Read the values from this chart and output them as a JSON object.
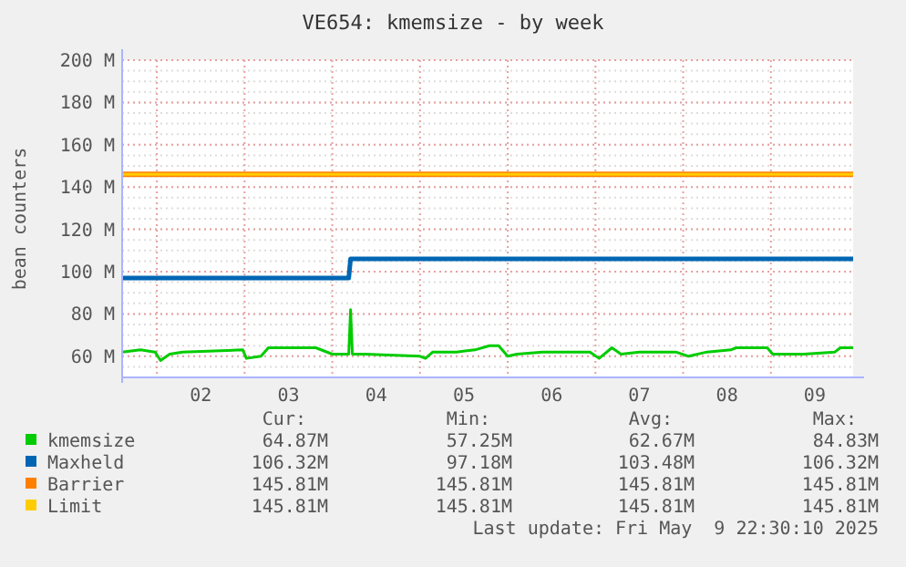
{
  "chart_data": {
    "type": "line",
    "title": "VE654: kmemsize - by week",
    "ylabel": "bean counters",
    "xlim": [
      "2025-05-01T14:30",
      "2025-05-09T22:30"
    ],
    "xticks": [
      {
        "value": "2025-05-02T00:00",
        "label": null
      },
      {
        "value": "2025-05-02T12:00",
        "label": "02"
      },
      {
        "value": "2025-05-03T00:00",
        "label": null
      },
      {
        "value": "2025-05-03T12:00",
        "label": "03"
      },
      {
        "value": "2025-05-04T00:00",
        "label": null
      },
      {
        "value": "2025-05-04T12:00",
        "label": "04"
      },
      {
        "value": "2025-05-05T00:00",
        "label": null
      },
      {
        "value": "2025-05-05T12:00",
        "label": "05"
      },
      {
        "value": "2025-05-06T00:00",
        "label": null
      },
      {
        "value": "2025-05-06T12:00",
        "label": "06"
      },
      {
        "value": "2025-05-07T00:00",
        "label": null
      },
      {
        "value": "2025-05-07T12:00",
        "label": "07"
      },
      {
        "value": "2025-05-08T00:00",
        "label": null
      },
      {
        "value": "2025-05-08T12:00",
        "label": "08"
      },
      {
        "value": "2025-05-09T00:00",
        "label": null
      },
      {
        "value": "2025-05-09T12:00",
        "label": "09"
      }
    ],
    "ylim": [
      50,
      200
    ],
    "yticks": [
      {
        "value": 60,
        "label": "60 M"
      },
      {
        "value": 80,
        "label": "80 M"
      },
      {
        "value": 100,
        "label": "100 M"
      },
      {
        "value": 120,
        "label": "120 M"
      },
      {
        "value": 140,
        "label": "140 M"
      },
      {
        "value": 160,
        "label": "160 M"
      },
      {
        "value": 180,
        "label": "180 M"
      },
      {
        "value": 200,
        "label": "200 M"
      }
    ],
    "grid": true,
    "legend": "bottom",
    "line_style": "solid",
    "series": [
      {
        "name": "kmemsize",
        "color": "#00cc00",
        "x": [
          "2025-05-01T14:30",
          "2025-05-01T19:30",
          "2025-05-01T23:30",
          "2025-05-02T01:00",
          "2025-05-02T03:30",
          "2025-05-02T07:00",
          "2025-05-02T23:30",
          "2025-05-03T00:30",
          "2025-05-03T04:30",
          "2025-05-03T06:30",
          "2025-05-03T16:30",
          "2025-05-03T19:30",
          "2025-05-04T00:00",
          "2025-05-04T04:30",
          "2025-05-04T05:00",
          "2025-05-04T05:30",
          "2025-05-04T09:00",
          "2025-05-05T00:00",
          "2025-05-05T01:30",
          "2025-05-05T03:30",
          "2025-05-05T10:00",
          "2025-05-05T15:00",
          "2025-05-05T19:00",
          "2025-05-05T21:30",
          "2025-05-06T00:00",
          "2025-05-06T02:30",
          "2025-05-06T09:30",
          "2025-05-06T22:30",
          "2025-05-07T01:00",
          "2025-05-07T04:30",
          "2025-05-07T07:00",
          "2025-05-07T12:00",
          "2025-05-07T22:00",
          "2025-05-08T01:30",
          "2025-05-08T06:30",
          "2025-05-08T13:00",
          "2025-05-08T14:30",
          "2025-05-08T23:00",
          "2025-05-09T00:30",
          "2025-05-09T09:00",
          "2025-05-09T17:30",
          "2025-05-09T19:00",
          "2025-05-09T22:30"
        ],
        "values": [
          62,
          63,
          62,
          58,
          61,
          62,
          63,
          59,
          60,
          64,
          64,
          64,
          61,
          61,
          82,
          61,
          61,
          60,
          59,
          62,
          62,
          63,
          65,
          65,
          60,
          61,
          62,
          62,
          59,
          64,
          61,
          62,
          62,
          60,
          62,
          63,
          64,
          64,
          61,
          61,
          62,
          64,
          64
        ]
      },
      {
        "name": "Maxheld",
        "color": "#0066b3",
        "x": [
          "2025-05-01T14:30",
          "2025-05-04T04:30",
          "2025-05-04T05:00",
          "2025-05-09T22:30"
        ],
        "values": [
          97,
          97,
          106,
          106
        ]
      },
      {
        "name": "Barrier",
        "color": "#ff8000",
        "x": [
          "2025-05-01T14:30",
          "2025-05-09T22:30"
        ],
        "values": [
          146,
          146
        ]
      },
      {
        "name": "Limit",
        "color": "#ffcc00",
        "x": [
          "2025-05-01T14:30",
          "2025-05-09T22:30"
        ],
        "values": [
          146,
          146
        ]
      }
    ],
    "annotations": [
      "Cur:",
      "Min:",
      "Avg:",
      "Max:",
      "64.87M",
      "57.25M",
      "62.67M",
      "84.83M",
      "106.32M",
      "97.18M",
      "103.48M",
      "106.32M",
      "145.81M",
      "145.81M",
      "145.81M",
      "145.81M",
      "145.81M",
      "145.81M",
      "145.81M",
      "145.81M",
      "Last update: Fri May  9 22:30:10 2025"
    ]
  }
}
